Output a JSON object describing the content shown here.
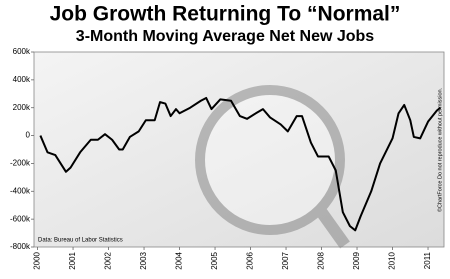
{
  "chart_data": {
    "type": "line",
    "title": "Job Growth Returning To “Normal”",
    "subtitle": "3-Month Moving Average Net New Jobs",
    "source": "Data: Bureau of Labor Statistics",
    "copyright": "©ChartForce  Do not reproduce without permission.",
    "x": [
      2000.08,
      2000.28,
      2000.5,
      2000.8,
      2000.93,
      2001.2,
      2001.5,
      2001.7,
      2001.9,
      2002.1,
      2002.3,
      2002.4,
      2002.6,
      2002.85,
      2003.05,
      2003.3,
      2003.45,
      2003.6,
      2003.75,
      2003.9,
      2004.0,
      2004.3,
      2004.6,
      2004.75,
      2004.9,
      2005.15,
      2005.45,
      2005.7,
      2005.9,
      2006.15,
      2006.35,
      2006.55,
      2006.85,
      2007.05,
      2007.3,
      2007.45,
      2007.7,
      2007.9,
      2008.2,
      2008.4,
      2008.6,
      2008.8,
      2008.95,
      2009.1,
      2009.4,
      2009.65,
      2010.0,
      2010.17,
      2010.33,
      2010.5,
      2010.6,
      2010.78,
      2011.0,
      2011.25,
      2011.35
    ],
    "series": [
      {
        "name": "3-Month Moving Average Net New Jobs",
        "color": "#000000",
        "values": [
          0,
          -120,
          -140,
          -260,
          -230,
          -120,
          -30,
          -30,
          10,
          -30,
          -100,
          -100,
          -10,
          30,
          110,
          110,
          240,
          230,
          140,
          190,
          160,
          200,
          250,
          270,
          190,
          260,
          250,
          140,
          120,
          160,
          190,
          130,
          80,
          30,
          140,
          140,
          -50,
          -150,
          -150,
          -250,
          -550,
          -650,
          -680,
          -580,
          -400,
          -200,
          -20,
          160,
          220,
          110,
          -10,
          -20,
          100,
          180,
          200
        ]
      }
    ],
    "xlim": [
      1999.9,
      2011.45
    ],
    "xticks": [
      2000,
      2001,
      2002,
      2003,
      2004,
      2005,
      2006,
      2007,
      2008,
      2009,
      2010,
      2011
    ],
    "ylim": [
      -800,
      600
    ],
    "yticks": [
      {
        "value": -800,
        "label": "-800k"
      },
      {
        "value": -600,
        "label": "-600k"
      },
      {
        "value": -400,
        "label": "-400k"
      },
      {
        "value": -200,
        "label": "-200k"
      },
      0,
      {
        "value": 200,
        "label": "200k"
      },
      {
        "value": 400,
        "label": "400k"
      },
      {
        "value": 600,
        "label": "600k"
      }
    ]
  }
}
